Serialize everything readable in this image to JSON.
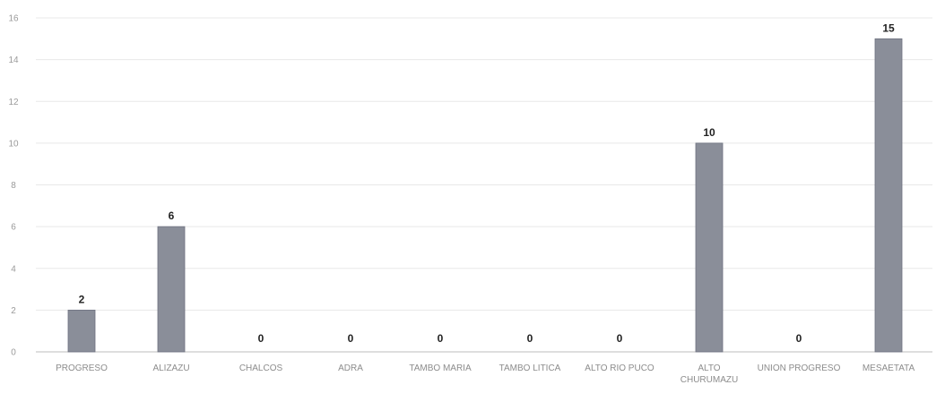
{
  "chart_data": {
    "type": "bar",
    "title": "",
    "xlabel": "",
    "ylabel": "",
    "ylim": [
      0,
      16
    ],
    "yticks": [
      0,
      2,
      4,
      6,
      8,
      10,
      12,
      14,
      16
    ],
    "grid": true,
    "legend": "none",
    "categories": [
      [
        "PROGRESO"
      ],
      [
        "ALIZAZU"
      ],
      [
        "CHALCOS"
      ],
      [
        "ADRA"
      ],
      [
        "TAMBO MARIA"
      ],
      [
        "TAMBO LITICA"
      ],
      [
        "ALTO RIO PUCO"
      ],
      [
        "ALTO",
        "CHURUMAZU"
      ],
      [
        "UNION PROGRESO"
      ],
      [
        "MESAETATA"
      ]
    ],
    "values": [
      2,
      6,
      0,
      0,
      0,
      0,
      0,
      10,
      0,
      15
    ],
    "bar_color": "#8a8e99",
    "bar_edge_color": "#6e7280"
  }
}
